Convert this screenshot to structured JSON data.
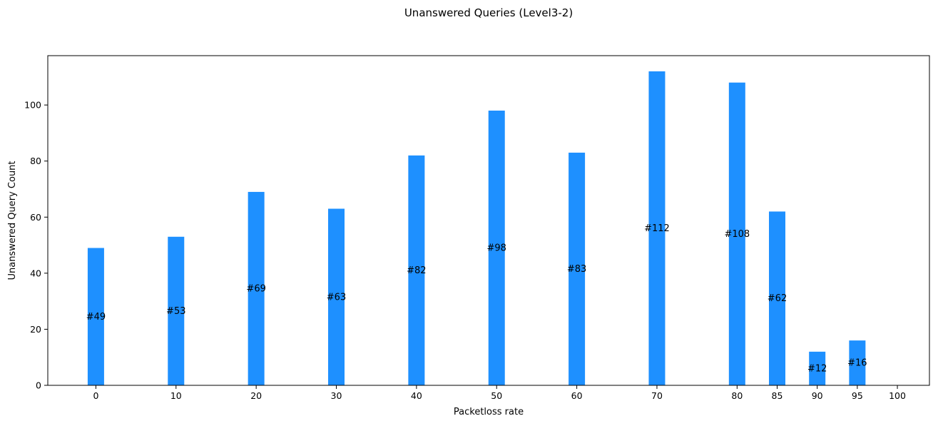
{
  "chart_data": {
    "type": "bar",
    "title": "Unanswered Queries (Level3-2)",
    "xlabel": "Packetloss rate",
    "ylabel": "Unanswered Query Count",
    "x_ticks": [
      0,
      10,
      20,
      30,
      40,
      50,
      60,
      70,
      80,
      85,
      90,
      95,
      100
    ],
    "categories": [
      0,
      10,
      20,
      30,
      40,
      50,
      60,
      70,
      80,
      85,
      90,
      95
    ],
    "values": [
      49,
      53,
      69,
      63,
      82,
      98,
      83,
      112,
      108,
      62,
      12,
      16
    ],
    "data_labels": [
      "#49",
      "#53",
      "#69",
      "#63",
      "#82",
      "#98",
      "#83",
      "#112",
      "#108",
      "#62",
      "#12",
      "#16"
    ],
    "y_ticks": [
      0,
      20,
      40,
      60,
      80,
      100
    ],
    "ylim": [
      0,
      117.6
    ],
    "xlim": [
      -6,
      104
    ],
    "bar_color": "#1e90ff",
    "grid": false,
    "legend": "none"
  }
}
